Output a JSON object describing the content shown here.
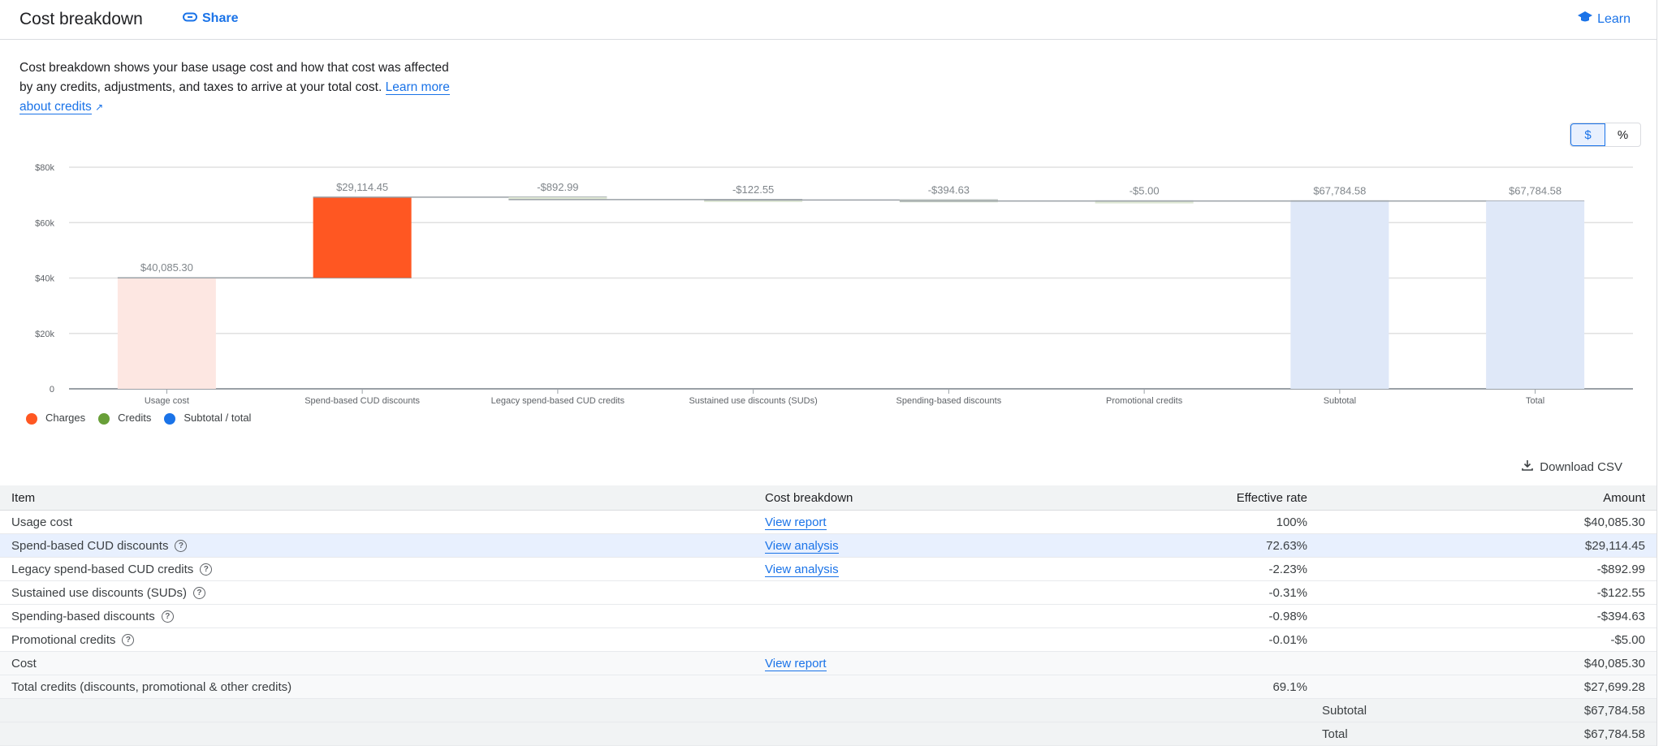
{
  "header": {
    "title": "Cost breakdown",
    "share": "Share",
    "learn": "Learn"
  },
  "description": {
    "text": "Cost breakdown shows your base usage cost and how that cost was affected by any credits, adjustments, and taxes to arrive at your total cost. ",
    "link": "Learn more about credits"
  },
  "toggle": {
    "dollar": "$",
    "percent": "%",
    "selected": "$"
  },
  "legend": [
    {
      "label": "Charges",
      "color": "#ff5722"
    },
    {
      "label": "Credits",
      "color": "#689f38"
    },
    {
      "label": "Subtotal / total",
      "color": "#1a73e8"
    }
  ],
  "chart_data": {
    "type": "waterfall",
    "categories": [
      "Usage cost",
      "Spend-based CUD discounts",
      "Legacy spend-based CUD credits",
      "Sustained use discounts (SUDs)",
      "Spending-based discounts",
      "Promotional credits",
      "Subtotal",
      "Total"
    ],
    "values": [
      40085.3,
      29114.45,
      -892.99,
      -122.55,
      -394.63,
      -5.0,
      67784.58,
      67784.58
    ],
    "kinds": [
      "base",
      "charge",
      "credit",
      "credit",
      "credit",
      "credit",
      "subtotal",
      "total"
    ],
    "data_labels": [
      "$40,085.30",
      "$29,114.45",
      "-$892.99",
      "-$122.55",
      "-$394.63",
      "-$5.00",
      "$67,784.58",
      "$67,784.58"
    ],
    "yticks": [
      "0",
      "$20k",
      "$40k",
      "$60k",
      "$80k"
    ],
    "ylim": [
      0,
      80000
    ],
    "grid": true,
    "legend": "bottom-left",
    "colors": {
      "base": "#fde7e2",
      "charge": "#ff5722",
      "credit": "#dfe8d5",
      "subtotal": "#dfe8f8",
      "total": "#dfe8f8"
    }
  },
  "download": "Download CSV",
  "table": {
    "headers": [
      "Item",
      "Cost breakdown",
      "Effective rate",
      "Amount"
    ],
    "rows": [
      {
        "item": "Usage cost",
        "link": "View report",
        "rate": "100%",
        "amount": "$40,085.30",
        "help": false
      },
      {
        "item": "Spend-based CUD discounts",
        "link": "View analysis",
        "rate": "72.63%",
        "amount": "$29,114.45",
        "help": true
      },
      {
        "item": "Legacy spend-based CUD credits",
        "link": "View analysis",
        "rate": "-2.23%",
        "amount": "-$892.99",
        "help": true
      },
      {
        "item": "Sustained use discounts (SUDs)",
        "link": "",
        "rate": "-0.31%",
        "amount": "-$122.55",
        "help": true
      },
      {
        "item": "Spending-based discounts",
        "link": "",
        "rate": "-0.98%",
        "amount": "-$394.63",
        "help": true
      },
      {
        "item": "Promotional credits",
        "link": "",
        "rate": "-0.01%",
        "amount": "-$5.00",
        "help": true
      },
      {
        "item": "Cost",
        "link": "View report",
        "rate": "",
        "amount": "$40,085.30",
        "help": false
      },
      {
        "item": "Total credits (discounts, promotional & other credits)",
        "link": "",
        "rate": "69.1%",
        "amount": "$27,699.28",
        "help": false
      }
    ],
    "subtotal": {
      "label": "Subtotal",
      "amount": "$67,784.58"
    },
    "total": {
      "label": "Total",
      "amount": "$67,784.58"
    }
  }
}
